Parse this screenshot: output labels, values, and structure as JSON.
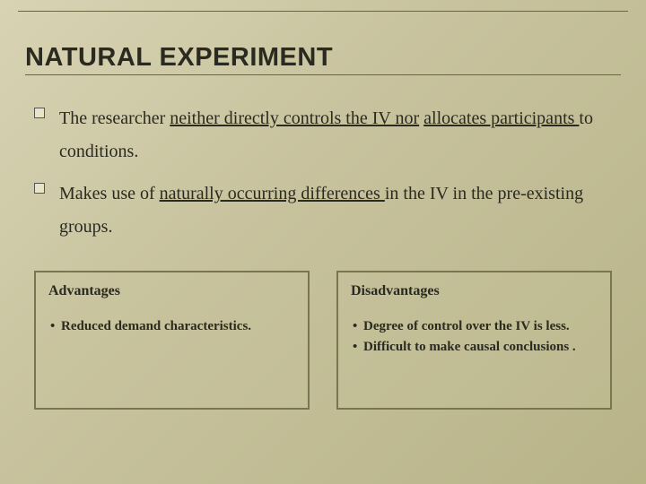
{
  "title": "NATURAL EXPERIMENT",
  "bullets": [
    {
      "pre": "The researcher ",
      "u1": "neither directly controls the IV nor",
      "mid": " ",
      "u2": "allocates participants ",
      "post": "to conditions."
    },
    {
      "pre": " Makes use of ",
      "u1": "naturally occurring differences ",
      "mid": "in the IV in the pre-existing groups.",
      "u2": "",
      "post": ""
    }
  ],
  "boxes": {
    "left": {
      "title": "Advantages",
      "items": [
        "Reduced demand characteristics."
      ]
    },
    "right": {
      "title": "Disadvantages",
      "items": [
        " Degree of control over the IV is less.",
        "Difficult to make causal conclusions ."
      ]
    }
  },
  "style": {
    "bg_gradient": [
      "#d8d3b3",
      "#c8c39e",
      "#b8b388"
    ],
    "title_fontsize": 29,
    "bullet_fontsize": 20,
    "box_title_fontsize": 16,
    "box_item_fontsize": 15,
    "border_color": "#7a7550",
    "line_color": "#6b6540",
    "text_color": "#2a2a20"
  }
}
